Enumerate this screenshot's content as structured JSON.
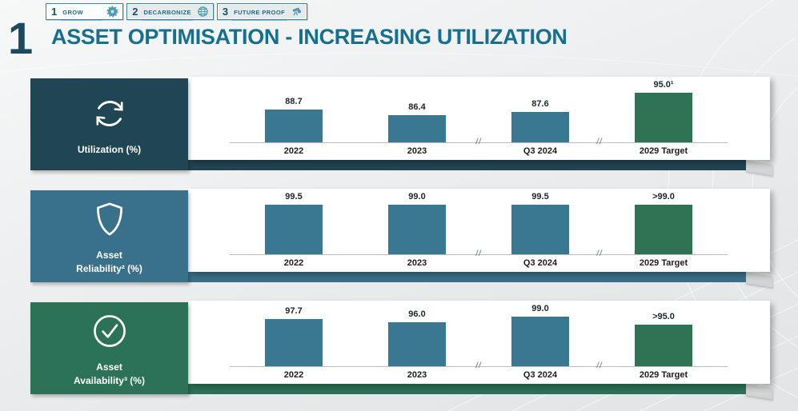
{
  "ui": {
    "axis_break": "//"
  },
  "tabs": [
    {
      "number": "1",
      "label": "GROW",
      "icon": "gear-icon",
      "active": true
    },
    {
      "number": "2",
      "label": "DECARBONIZE",
      "icon": "globe-icon",
      "active": false
    },
    {
      "number": "3",
      "label": "FUTURE PROOF",
      "icon": "telescope-icon",
      "active": false
    }
  ],
  "header": {
    "index": "1",
    "title": "ASSET OPTIMISATION - INCREASING UTILIZATION"
  },
  "colors": {
    "title": "#156f8e",
    "bar_blue": "#3a7790",
    "bar_green": "#2f7355",
    "row1_box": "#204653",
    "row2_box": "#39718a",
    "row3_box": "#2c7259"
  },
  "rows": [
    {
      "icon": "sync-icon",
      "label_line1": "Utilization (%)",
      "label_line2": "",
      "color": "#204653"
    },
    {
      "icon": "shield-icon",
      "label_line1": "Asset",
      "label_line2": "Reliability² (%)",
      "color": "#39718a"
    },
    {
      "icon": "check-circle-icon",
      "label_line1": "Asset",
      "label_line2": "Availability³ (%)",
      "color": "#2c7259"
    }
  ],
  "chart_data": [
    {
      "type": "bar",
      "title": "Utilization (%)",
      "categories": [
        "2022",
        "2023",
        "Q3 2024",
        "2029 Target"
      ],
      "values": [
        88.7,
        86.4,
        87.6,
        95.0
      ],
      "value_labels": [
        "88.7",
        "86.4",
        "87.6",
        "95.0¹"
      ],
      "bar_colors": [
        "#3a7790",
        "#3a7790",
        "#3a7790",
        "#2f7355"
      ],
      "ylim": [
        76,
        100
      ],
      "x_axis_breaks_between": [
        [
          "2023",
          "Q3 2024"
        ],
        [
          "Q3 2024",
          "2029 Target"
        ]
      ],
      "grid": false,
      "legend": false
    },
    {
      "type": "bar",
      "title": "Asset Reliability² (%)",
      "categories": [
        "2022",
        "2023",
        "Q3 2024",
        "2029 Target"
      ],
      "values": [
        99.5,
        99.0,
        99.5,
        99.0
      ],
      "value_labels": [
        "99.5",
        "99.0",
        "99.5",
        ">99.0"
      ],
      "bar_colors": [
        "#3a7790",
        "#3a7790",
        "#3a7790",
        "#2f7355"
      ],
      "ylim": [
        0,
        125
      ],
      "x_axis_breaks_between": [
        [
          "2023",
          "Q3 2024"
        ],
        [
          "Q3 2024",
          "2029 Target"
        ]
      ],
      "grid": false,
      "legend": false
    },
    {
      "type": "bar",
      "title": "Asset Availability³ (%)",
      "categories": [
        "2022",
        "2023",
        "Q3 2024",
        "2029 Target"
      ],
      "values": [
        97.7,
        96.0,
        99.0,
        95.0
      ],
      "value_labels": [
        "97.7",
        "96.0",
        "99.0",
        ">95.0"
      ],
      "bar_colors": [
        "#3a7790",
        "#3a7790",
        "#3a7790",
        "#2f7355"
      ],
      "ylim": [
        75,
        105
      ],
      "x_axis_breaks_between": [
        [
          "2023",
          "Q3 2024"
        ],
        [
          "Q3 2024",
          "2029 Target"
        ]
      ],
      "grid": false,
      "legend": false
    }
  ]
}
